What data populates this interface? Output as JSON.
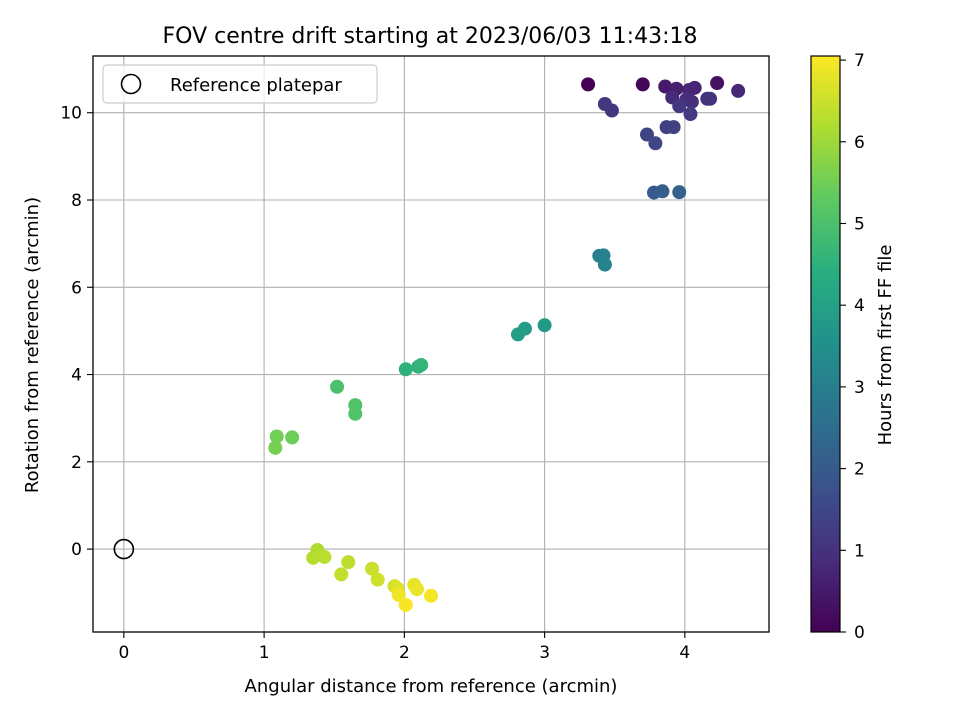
{
  "chart_data": {
    "type": "scatter",
    "title": "FOV centre drift starting at 2023/06/03 11:43:18",
    "xlabel": "Angular distance from reference (arcmin)",
    "ylabel": "Rotation from reference (arcmin)",
    "xlim": [
      -0.22,
      4.6
    ],
    "ylim": [
      -1.9,
      11.3
    ],
    "xticks": [
      0,
      1,
      2,
      3,
      4
    ],
    "yticks": [
      0,
      2,
      4,
      6,
      8,
      10
    ],
    "grid": true,
    "legend": {
      "position": "top-left",
      "entries": [
        "Reference platepar"
      ]
    },
    "reference": {
      "x": 0,
      "y": 0,
      "label": "Reference platepar"
    },
    "colorbar": {
      "label": "Hours from first FF file",
      "range": [
        0,
        7.05
      ],
      "ticks": [
        0,
        1,
        2,
        3,
        4,
        5,
        6,
        7
      ],
      "colormap": "viridis"
    },
    "points": [
      {
        "x": 3.31,
        "y": 10.65,
        "c": 0.0
      },
      {
        "x": 3.7,
        "y": 10.65,
        "c": 0.1
      },
      {
        "x": 4.23,
        "y": 10.68,
        "c": 0.3
      },
      {
        "x": 3.86,
        "y": 10.6,
        "c": 0.5
      },
      {
        "x": 3.94,
        "y": 10.55,
        "c": 0.6
      },
      {
        "x": 4.07,
        "y": 10.57,
        "c": 0.7
      },
      {
        "x": 4.03,
        "y": 10.52,
        "c": 0.75
      },
      {
        "x": 4.38,
        "y": 10.5,
        "c": 0.8
      },
      {
        "x": 3.91,
        "y": 10.35,
        "c": 0.85
      },
      {
        "x": 4.01,
        "y": 10.3,
        "c": 0.9
      },
      {
        "x": 4.05,
        "y": 10.25,
        "c": 0.95
      },
      {
        "x": 4.16,
        "y": 10.32,
        "c": 1.0
      },
      {
        "x": 4.18,
        "y": 10.32,
        "c": 1.0
      },
      {
        "x": 3.43,
        "y": 10.2,
        "c": 1.1
      },
      {
        "x": 3.96,
        "y": 10.15,
        "c": 1.1
      },
      {
        "x": 3.48,
        "y": 10.05,
        "c": 1.15
      },
      {
        "x": 4.04,
        "y": 9.97,
        "c": 1.2
      },
      {
        "x": 3.87,
        "y": 9.67,
        "c": 1.3
      },
      {
        "x": 3.92,
        "y": 9.67,
        "c": 1.35
      },
      {
        "x": 3.73,
        "y": 9.5,
        "c": 1.4
      },
      {
        "x": 3.79,
        "y": 9.3,
        "c": 1.5
      },
      {
        "x": 3.78,
        "y": 8.17,
        "c": 2.0
      },
      {
        "x": 3.84,
        "y": 8.2,
        "c": 2.1
      },
      {
        "x": 3.96,
        "y": 8.18,
        "c": 2.2
      },
      {
        "x": 3.39,
        "y": 6.72,
        "c": 3.0
      },
      {
        "x": 3.42,
        "y": 6.73,
        "c": 3.05
      },
      {
        "x": 3.43,
        "y": 6.52,
        "c": 3.1
      },
      {
        "x": 3.0,
        "y": 5.13,
        "c": 3.8
      },
      {
        "x": 2.86,
        "y": 5.05,
        "c": 3.85
      },
      {
        "x": 2.81,
        "y": 4.92,
        "c": 3.9
      },
      {
        "x": 2.01,
        "y": 4.12,
        "c": 4.5
      },
      {
        "x": 2.1,
        "y": 4.18,
        "c": 4.55
      },
      {
        "x": 2.12,
        "y": 4.22,
        "c": 4.6
      },
      {
        "x": 1.52,
        "y": 3.72,
        "c": 5.0
      },
      {
        "x": 1.65,
        "y": 3.3,
        "c": 5.05
      },
      {
        "x": 1.65,
        "y": 3.1,
        "c": 5.1
      },
      {
        "x": 1.09,
        "y": 2.58,
        "c": 5.5
      },
      {
        "x": 1.2,
        "y": 2.56,
        "c": 5.45
      },
      {
        "x": 1.08,
        "y": 2.32,
        "c": 5.55
      },
      {
        "x": 1.38,
        "y": -0.02,
        "c": 6.2
      },
      {
        "x": 1.35,
        "y": -0.2,
        "c": 6.25
      },
      {
        "x": 1.43,
        "y": -0.18,
        "c": 6.3
      },
      {
        "x": 1.6,
        "y": -0.3,
        "c": 6.35
      },
      {
        "x": 1.55,
        "y": -0.58,
        "c": 6.4
      },
      {
        "x": 1.77,
        "y": -0.45,
        "c": 6.5
      },
      {
        "x": 1.81,
        "y": -0.7,
        "c": 6.55
      },
      {
        "x": 1.93,
        "y": -0.85,
        "c": 6.6
      },
      {
        "x": 1.95,
        "y": -0.9,
        "c": 6.7
      },
      {
        "x": 2.07,
        "y": -0.82,
        "c": 6.8
      },
      {
        "x": 2.09,
        "y": -0.92,
        "c": 6.85
      },
      {
        "x": 1.96,
        "y": -1.05,
        "c": 6.9
      },
      {
        "x": 2.19,
        "y": -1.07,
        "c": 6.95
      },
      {
        "x": 2.01,
        "y": -1.28,
        "c": 7.0
      }
    ]
  }
}
